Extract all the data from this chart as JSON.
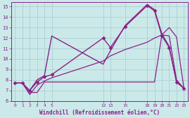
{
  "bg_color": "#cce9e9",
  "grid_color": "#aad0d0",
  "line_color": "#882288",
  "title": "Windchill (Refroidissement éolien,°C)",
  "xlim": [
    -0.5,
    23.5
  ],
  "ylim": [
    6,
    15.4
  ],
  "xticks": [
    0,
    1,
    2,
    3,
    4,
    5,
    12,
    13,
    15,
    18,
    19,
    20,
    21,
    22,
    23
  ],
  "yticks": [
    6,
    7,
    8,
    9,
    10,
    11,
    12,
    13,
    14,
    15
  ],
  "series": [
    {
      "x": [
        0,
        1,
        2,
        3,
        4,
        5,
        12,
        13,
        15,
        18,
        19,
        20,
        21,
        22,
        23
      ],
      "y": [
        7.7,
        7.7,
        7.0,
        7.8,
        8.3,
        8.5,
        12.0,
        11.1,
        13.1,
        15.1,
        14.6,
        12.2,
        11.1,
        7.8,
        7.2
      ],
      "marker": "D",
      "markersize": 2.5,
      "linewidth": 1.0
    },
    {
      "x": [
        0,
        1,
        2,
        3,
        4,
        5,
        12,
        13,
        15,
        18,
        19,
        20,
        21,
        22,
        23
      ],
      "y": [
        7.7,
        7.7,
        6.8,
        6.8,
        7.8,
        7.8,
        7.8,
        7.8,
        7.8,
        7.8,
        7.8,
        12.3,
        13.0,
        12.1,
        7.2
      ],
      "marker": null,
      "linewidth": 0.9
    },
    {
      "x": [
        0,
        1,
        2,
        3,
        4,
        5,
        12,
        13,
        15,
        18,
        19,
        20,
        21,
        22,
        23
      ],
      "y": [
        7.7,
        7.7,
        6.6,
        7.5,
        7.9,
        8.2,
        9.8,
        10.3,
        10.9,
        11.6,
        12.0,
        12.3,
        12.2,
        8.0,
        7.2
      ],
      "marker": null,
      "linewidth": 0.9
    },
    {
      "x": [
        2,
        3,
        4,
        5,
        12,
        13,
        15,
        18,
        19,
        20,
        21,
        22,
        23
      ],
      "y": [
        7.0,
        8.0,
        8.4,
        12.2,
        9.5,
        10.8,
        13.2,
        15.2,
        14.7,
        12.4,
        11.2,
        7.8,
        7.2
      ],
      "marker": null,
      "linewidth": 1.0
    }
  ]
}
